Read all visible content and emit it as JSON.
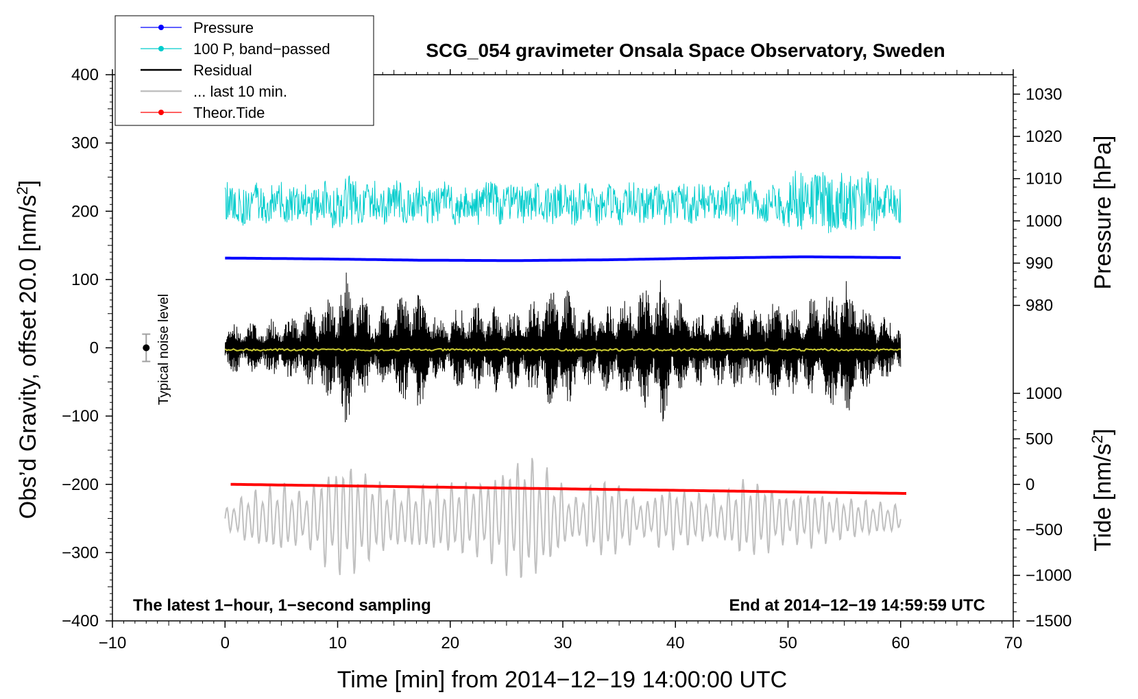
{
  "chart_data": {
    "type": "line",
    "title": "SCG_054 gravimeter Onsala Space Observatory, Sweden",
    "xlabel": "Time [min] from 2014−12−19 14:00:00 UTC",
    "xlim": [
      -10,
      70
    ],
    "x_ticks": [
      -10,
      0,
      10,
      20,
      30,
      40,
      50,
      60,
      70
    ],
    "x_tick_labels": [
      "−10",
      "0",
      "10",
      "20",
      "30",
      "40",
      "50",
      "60",
      "70"
    ],
    "left_axis": {
      "label_parts": [
        "Obs’d Gravity, offset 20.0 [nm/s",
        "2",
        "]"
      ],
      "ylim": [
        -400,
        400
      ],
      "ticks": [
        -400,
        -300,
        -200,
        -100,
        0,
        100,
        200,
        300,
        400
      ],
      "tick_labels": [
        "−400",
        "−300",
        "−200",
        "−100",
        "0",
        "100",
        "200",
        "300",
        "400"
      ]
    },
    "pressure_axis": {
      "label": "Pressure [hPa]",
      "ticks": [
        980,
        990,
        1000,
        1010,
        1020,
        1030
      ],
      "tick_labels": [
        "980",
        "990",
        "1000",
        "1010",
        "1020",
        "1030"
      ],
      "calibration": {
        "hpa_a": 990,
        "grav_a": 124,
        "hpa_b": 1030,
        "grav_b": 371.5
      }
    },
    "tide_axis": {
      "label_parts": [
        "Tide [nm/s",
        "2",
        "]"
      ],
      "ticks": [
        -1500,
        -1000,
        -500,
        0,
        500,
        1000
      ],
      "tick_labels": [
        "−1500",
        "−1000",
        "−500",
        "0",
        "500",
        "1000"
      ],
      "calibration": {
        "tide_a": 0,
        "grav_a": -200,
        "tide_b": 1000,
        "grav_b": -66.7
      }
    },
    "series": [
      {
        "name": "Pressure",
        "color": "#0000ff",
        "x_range": [
          0,
          60
        ],
        "values_hpa": [
          991.2,
          991.0,
          990.7,
          990.6,
          990.8,
          991.2,
          991.5,
          991.3
        ]
      },
      {
        "name": "100 P, band−passed",
        "color": "#00cccc",
        "x_range": [
          0,
          60
        ],
        "center": 212,
        "amplitude": 28
      },
      {
        "name": "Residual",
        "color": "#000000",
        "x_range": [
          0,
          60
        ],
        "center": 0,
        "amplitude_envelope": [
          [
            0,
            35
          ],
          [
            5,
            45
          ],
          [
            9,
            70
          ],
          [
            11,
            120
          ],
          [
            13,
            55
          ],
          [
            17,
            95
          ],
          [
            19,
            45
          ],
          [
            21,
            65
          ],
          [
            23,
            70
          ],
          [
            26,
            60
          ],
          [
            30,
            100
          ],
          [
            32,
            55
          ],
          [
            34,
            70
          ],
          [
            36,
            80
          ],
          [
            39,
            110
          ],
          [
            41,
            60
          ],
          [
            43,
            55
          ],
          [
            45,
            70
          ],
          [
            47,
            60
          ],
          [
            49,
            75
          ],
          [
            51,
            70
          ],
          [
            53,
            80
          ],
          [
            55,
            110
          ],
          [
            57,
            60
          ],
          [
            60,
            40
          ]
        ]
      },
      {
        "name": "... last 10 min.",
        "color": "#c0c0c0",
        "x_range": [
          0,
          60
        ],
        "center": -250,
        "amplitude_envelope": [
          [
            0,
            15
          ],
          [
            2,
            40
          ],
          [
            5,
            55
          ],
          [
            7,
            40
          ],
          [
            9,
            75
          ],
          [
            11,
            90
          ],
          [
            13,
            65
          ],
          [
            15,
            45
          ],
          [
            17,
            50
          ],
          [
            20,
            55
          ],
          [
            23,
            60
          ],
          [
            25,
            85
          ],
          [
            27,
            100
          ],
          [
            29,
            70
          ],
          [
            31,
            30
          ],
          [
            33,
            60
          ],
          [
            35,
            55
          ],
          [
            37,
            25
          ],
          [
            39,
            50
          ],
          [
            42,
            40
          ],
          [
            44,
            35
          ],
          [
            46,
            60
          ],
          [
            48,
            55
          ],
          [
            50,
            35
          ],
          [
            52,
            45
          ],
          [
            54,
            35
          ],
          [
            56,
            30
          ],
          [
            58,
            25
          ],
          [
            60,
            20
          ]
        ]
      },
      {
        "name": "Theor.Tide",
        "color": "#ff0000",
        "x_range": [
          0.5,
          60.5
        ],
        "values_nm_s2": [
          0,
          -100
        ]
      }
    ],
    "smoothed_residual": {
      "color": "#cccc33",
      "value": -3
    },
    "noise_bar": {
      "label": "Typical noise level",
      "x": -7,
      "center": 0,
      "low": -20,
      "high": 20
    },
    "annotations": {
      "left": "The latest 1−hour, 1−second sampling",
      "right": "End at 2014−12−19 14:59:59 UTC"
    },
    "legend": [
      {
        "label": "Pressure",
        "color": "#0000ff",
        "style": "line-dot"
      },
      {
        "label": "100 P, band−passed",
        "color": "#00cccc",
        "style": "line-dot"
      },
      {
        "label": "Residual",
        "color": "#000000",
        "style": "line"
      },
      {
        "label": "... last 10 min.",
        "color": "#c0c0c0",
        "style": "line"
      },
      {
        "label": "Theor.Tide",
        "color": "#ff0000",
        "style": "line-dot"
      }
    ]
  }
}
